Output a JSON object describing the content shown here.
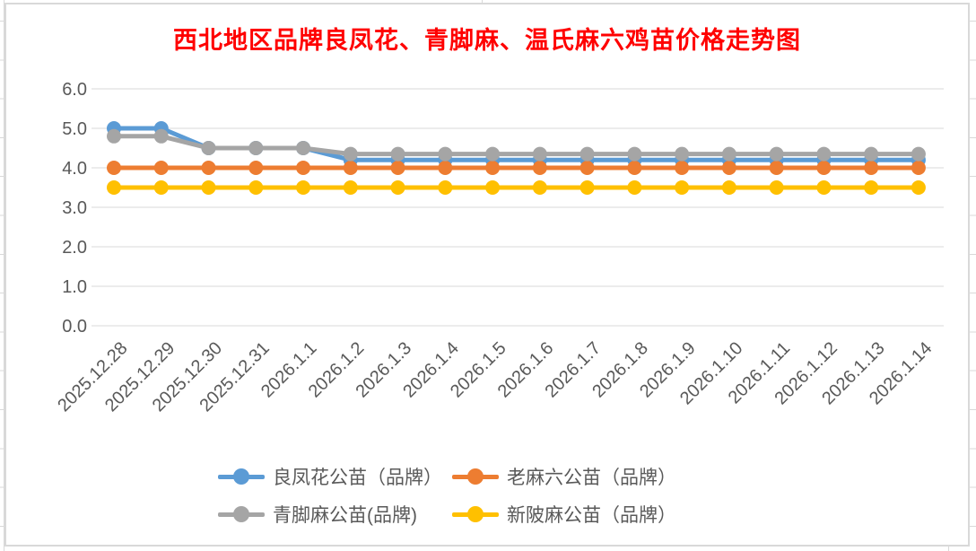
{
  "chart_data": {
    "type": "line",
    "title": "西北地区品牌良凤花、青脚麻、温氏麻六鸡苗价格走势图",
    "title_color": "#FF0000",
    "categories": [
      "2025.12.28",
      "2025.12.29",
      "2025.12.30",
      "2025.12.31",
      "2026.1.1",
      "2026.1.2",
      "2026.1.3",
      "2026.1.4",
      "2026.1.5",
      "2026.1.6",
      "2026.1.7",
      "2026.1.8",
      "2026.1.9",
      "2026.1.10",
      "2026.1.11",
      "2026.1.12",
      "2026.1.13",
      "2026.1.14"
    ],
    "series": [
      {
        "name": "良凤花公苗（品牌）",
        "color": "#5B9BD5",
        "values": [
          5.0,
          5.0,
          4.5,
          4.5,
          4.5,
          4.2,
          4.2,
          4.2,
          4.2,
          4.2,
          4.2,
          4.2,
          4.2,
          4.2,
          4.2,
          4.2,
          4.2,
          4.2
        ]
      },
      {
        "name": "老麻六公苗（品牌）",
        "color": "#ED7D31",
        "values": [
          4.0,
          4.0,
          4.0,
          4.0,
          4.0,
          4.0,
          4.0,
          4.0,
          4.0,
          4.0,
          4.0,
          4.0,
          4.0,
          4.0,
          4.0,
          4.0,
          4.0,
          4.0
        ]
      },
      {
        "name": "青脚麻公苗(品牌)",
        "color": "#A5A5A5",
        "values": [
          4.8,
          4.8,
          4.5,
          4.5,
          4.5,
          4.35,
          4.35,
          4.35,
          4.35,
          4.35,
          4.35,
          4.35,
          4.35,
          4.35,
          4.35,
          4.35,
          4.35,
          4.35
        ]
      },
      {
        "name": "新陂麻公苗（品牌）",
        "color": "#FFC000",
        "values": [
          3.5,
          3.5,
          3.5,
          3.5,
          3.5,
          3.5,
          3.5,
          3.5,
          3.5,
          3.5,
          3.5,
          3.5,
          3.5,
          3.5,
          3.5,
          3.5,
          3.5,
          3.5
        ]
      }
    ],
    "ylim": [
      0,
      6
    ],
    "ytick_labels": [
      "0.0",
      "1.0",
      "2.0",
      "3.0",
      "4.0",
      "5.0",
      "6.0"
    ],
    "grid": true,
    "legend_position": "bottom",
    "axis_text_color": "#595959",
    "gridline_color": "#D9D9D9"
  }
}
